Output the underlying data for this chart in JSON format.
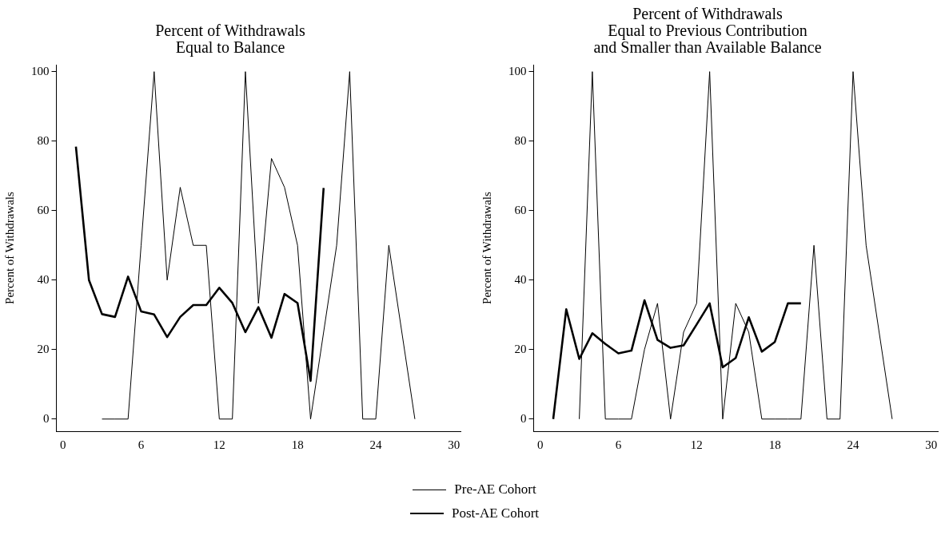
{
  "chart_data": [
    {
      "type": "line",
      "title": "Percent of Withdrawals\nEqual to Balance",
      "ylabel": "Percent of Withdrawals",
      "xlim": [
        -0.5,
        30.5
      ],
      "xticks": [
        0,
        6,
        12,
        18,
        24,
        30
      ],
      "ylim": [
        -3.5,
        102
      ],
      "yticks": [
        0,
        20,
        40,
        60,
        80,
        100
      ],
      "grid": false,
      "legend": "bottom",
      "marker": "none",
      "line_style": "solid",
      "series": [
        {
          "name": "Pre-AE Cohort",
          "color": "#000000",
          "x": [
            3,
            4,
            5,
            6,
            7,
            8,
            9,
            10,
            11,
            12,
            13,
            14,
            15,
            16,
            17,
            18,
            19,
            20,
            21,
            22,
            23,
            24,
            25,
            26,
            27
          ],
          "values": [
            0,
            0,
            0,
            50,
            100,
            40,
            66.7,
            50,
            50,
            0,
            0,
            100,
            33.3,
            75,
            66.7,
            50,
            0,
            25,
            50,
            100,
            0,
            0,
            50,
            25,
            0
          ]
        },
        {
          "name": "Post-AE Cohort",
          "color": "#000000",
          "x": [
            1,
            2,
            3,
            4,
            5,
            6,
            7,
            8,
            9,
            10,
            11,
            12,
            13,
            14,
            15,
            16,
            17,
            18,
            19,
            20
          ],
          "values": [
            78.4,
            40,
            30.2,
            29.4,
            41,
            31,
            30.1,
            23.6,
            29.4,
            32.8,
            32.8,
            37.8,
            33.4,
            25,
            32.2,
            23.4,
            36,
            33.4,
            11,
            66.5
          ]
        }
      ]
    },
    {
      "type": "line",
      "title": "Percent of Withdrawals\nEqual to Previous Contribution\nand Smaller than Available Balance",
      "ylabel": "Percent of Withdrawals",
      "xlim": [
        -0.5,
        30.5
      ],
      "xticks": [
        0,
        6,
        12,
        18,
        24,
        30
      ],
      "ylim": [
        -3.5,
        102
      ],
      "yticks": [
        0,
        20,
        40,
        60,
        80,
        100
      ],
      "grid": false,
      "legend": "bottom",
      "marker": "none",
      "line_style": "solid",
      "series": [
        {
          "name": "Pre-AE Cohort",
          "color": "#000000",
          "x": [
            3,
            4,
            5,
            6,
            7,
            8,
            9,
            10,
            11,
            12,
            13,
            14,
            15,
            16,
            17,
            18,
            19,
            20,
            21,
            22,
            23,
            24,
            25,
            26,
            27
          ],
          "values": [
            0,
            100,
            0,
            0,
            0,
            20,
            33.3,
            0,
            25,
            33.3,
            100,
            0,
            33.3,
            25,
            0,
            0,
            0,
            0,
            50,
            0,
            0,
            100,
            50,
            25,
            0
          ]
        },
        {
          "name": "Post-AE Cohort",
          "color": "#000000",
          "x": [
            1,
            2,
            3,
            4,
            5,
            6,
            7,
            8,
            9,
            10,
            11,
            12,
            13,
            14,
            15,
            16,
            17,
            18,
            19,
            20
          ],
          "values": [
            0,
            31.6,
            17.3,
            24.7,
            21.6,
            18.9,
            19.7,
            34.2,
            22.8,
            20.5,
            21.2,
            27.2,
            33.3,
            14.9,
            17.6,
            29.3,
            19.4,
            22.2,
            33.3,
            33.3
          ]
        }
      ]
    }
  ]
}
